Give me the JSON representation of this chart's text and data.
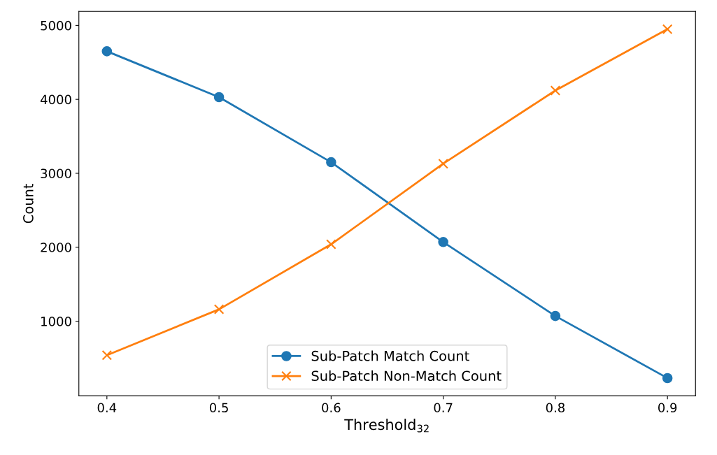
{
  "chart_data": {
    "type": "line",
    "xlabel": "Threshold$_{32}$",
    "ylabel": "Count",
    "x": [
      0.4,
      0.5,
      0.6,
      0.7,
      0.8,
      0.9
    ],
    "series": [
      {
        "name": "Sub-Patch Match Count",
        "color": "#1f77b4",
        "marker": "circle",
        "values": [
          4650,
          4030,
          3150,
          2070,
          1070,
          230
        ]
      },
      {
        "name": "Sub-Patch Non-Match Count",
        "color": "#ff7f0e",
        "marker": "cross",
        "values": [
          540,
          1160,
          2040,
          3130,
          4120,
          4950
        ]
      }
    ],
    "xlim": [
      0.375,
      0.925
    ],
    "xticks": [
      0.4,
      0.5,
      0.6,
      0.7,
      0.8,
      0.9
    ],
    "ylim": [
      -10,
      5190
    ],
    "yticks": [
      1000,
      2000,
      3000,
      4000,
      5000
    ],
    "legend": "bottom",
    "grid": false
  }
}
